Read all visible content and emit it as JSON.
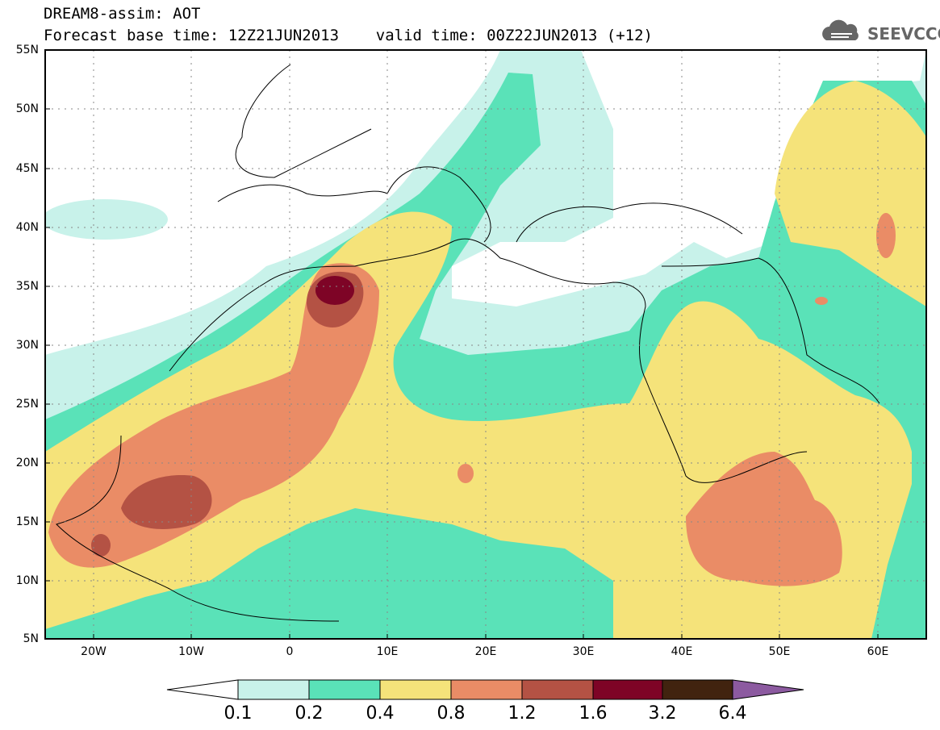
{
  "title": {
    "line1": "DREAM8-assim: AOT",
    "line2": "Forecast base time: 12Z21JUN2013    valid time: 00Z22JUN2013 (+12)"
  },
  "logo": {
    "text": "SEEVCCC"
  },
  "lat_labels": [
    "55N",
    "50N",
    "45N",
    "40N",
    "35N",
    "30N",
    "25N",
    "20N",
    "15N",
    "10N",
    "5N"
  ],
  "lon_labels": [
    "20W",
    "10W",
    "0",
    "10E",
    "20E",
    "30E",
    "40E",
    "50E",
    "60E"
  ],
  "colorbar": {
    "labels": [
      "0.1",
      "0.2",
      "0.4",
      "0.8",
      "1.2",
      "1.6",
      "3.2",
      "6.4"
    ],
    "colors": [
      "#ffffff",
      "#c8f2ea",
      "#5ae2b8",
      "#f5e37a",
      "#ea8c66",
      "#b45244",
      "#7e0426",
      "#41230f",
      "#8c5aa0"
    ]
  },
  "map_colors": {
    "level_0_1": "#c8f2ea",
    "level_0_2": "#5ae2b8",
    "level_0_4": "#f5e37a",
    "level_0_8": "#ea8c66",
    "level_1_2": "#b45244",
    "level_1_6": "#7e0426"
  }
}
